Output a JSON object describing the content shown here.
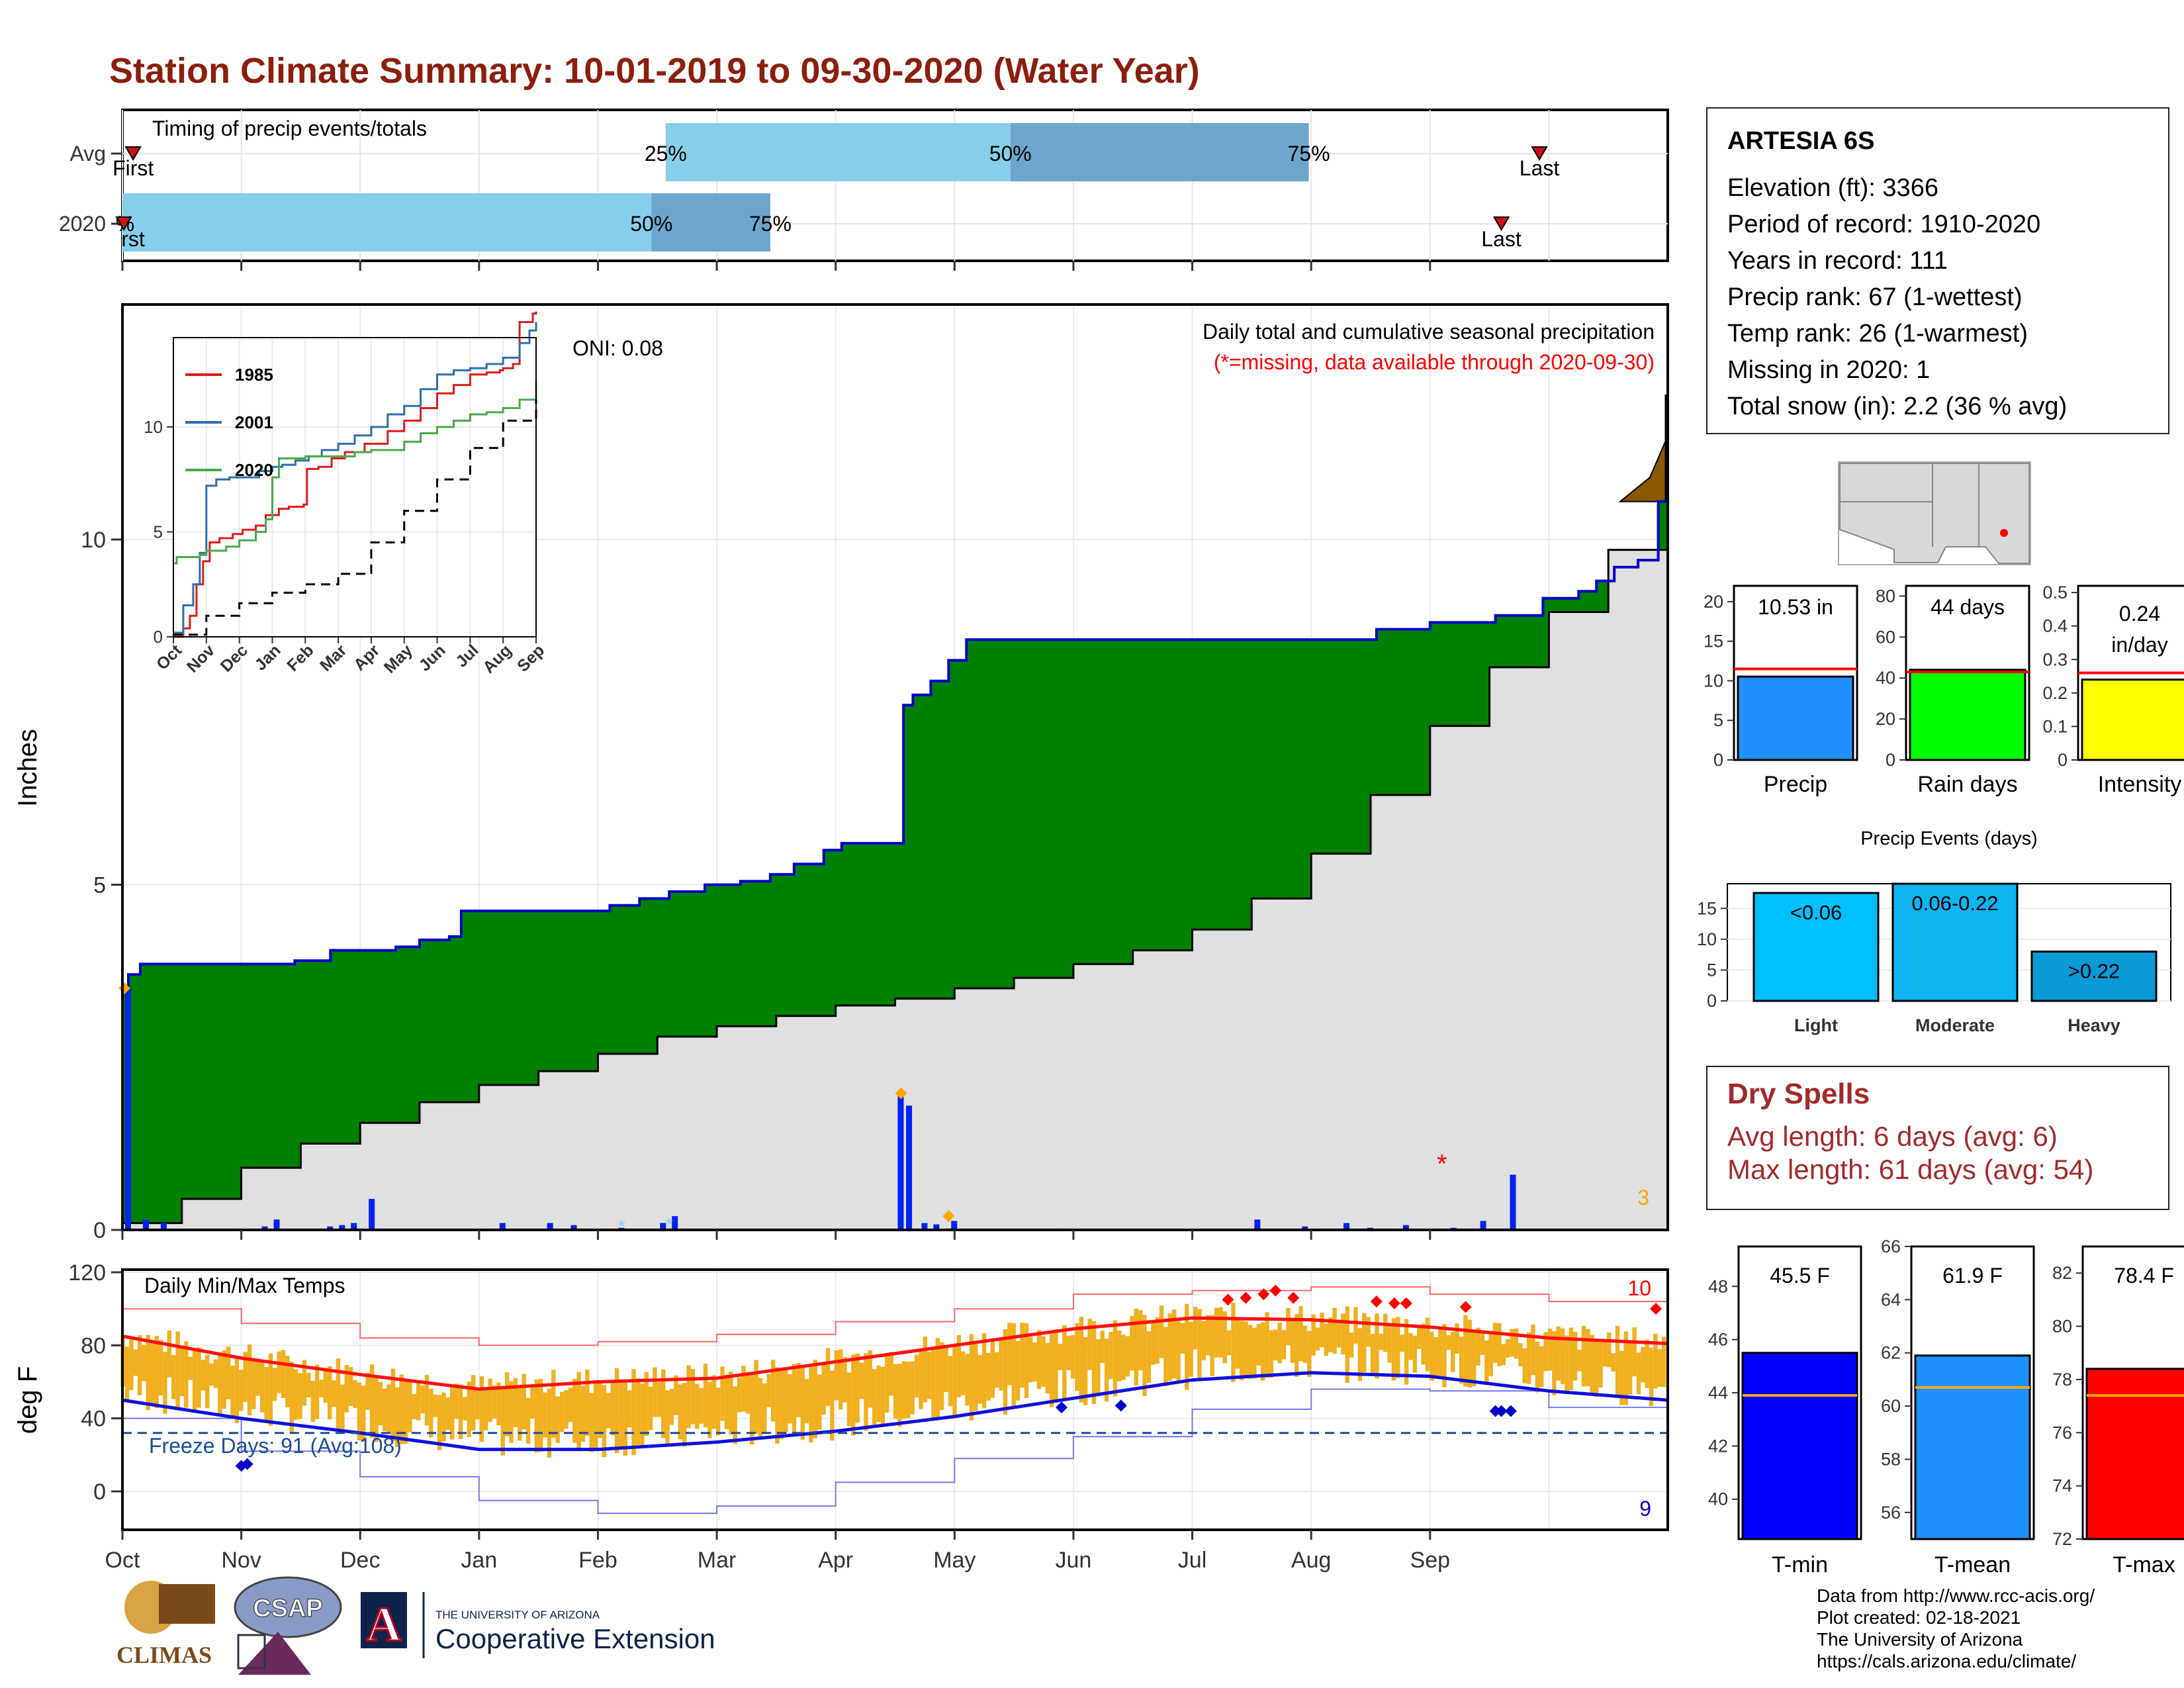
{
  "title": "Station Climate Summary: 10-01-2019 to 09-30-2020 (Water Year)",
  "station": {
    "name": "ARTESIA 6S",
    "lines": [
      "Elevation (ft): 3366",
      "Period of record: 1910-2020",
      "Years in record: 111",
      "Precip rank: 67 (1-wettest)",
      "Temp rank: 26 (1-warmest)",
      "Missing in 2020: 1",
      "Total snow (in): 2.2 (36 % avg)"
    ]
  },
  "months": [
    "Oct",
    "Nov",
    "Dec",
    "Jan",
    "Feb",
    "Mar",
    "Apr",
    "May",
    "Jun",
    "Jul",
    "Aug",
    "Sep"
  ],
  "timing": {
    "title": "Timing of precip events/totals",
    "rows": [
      "Avg",
      "2020"
    ],
    "avg": {
      "first": 0.09,
      "p25": 4.57,
      "p50": 7.47,
      "p75": 9.98,
      "last": 11.92
    },
    "y2020": {
      "first": 0.0,
      "p25": 0.0,
      "p50": 4.45,
      "p75": 5.45,
      "last": 11.6
    },
    "labels": {
      "first": "First",
      "last": "Last",
      "p25": "25%",
      "p50": "50%",
      "p75": "75%",
      "p0": "%",
      "first_cut": "rst"
    }
  },
  "precip": {
    "ylabel": "Inches",
    "yticks": [
      0,
      5,
      10
    ],
    "oni": "ONI: 0.08",
    "note": "Daily total and cumulative seasonal precipitation",
    "missing_note": "(*=missing, data available through 2020-09-30)",
    "count_label": "3",
    "cum_2020": [
      [
        0,
        3.5
      ],
      [
        0.05,
        3.7
      ],
      [
        0.15,
        3.85
      ],
      [
        1.0,
        3.85
      ],
      [
        1.45,
        3.9
      ],
      [
        1.75,
        4.05
      ],
      [
        2.3,
        4.1
      ],
      [
        2.5,
        4.2
      ],
      [
        2.75,
        4.25
      ],
      [
        2.85,
        4.62
      ],
      [
        4.1,
        4.7
      ],
      [
        4.35,
        4.8
      ],
      [
        4.6,
        4.9
      ],
      [
        4.9,
        5.0
      ],
      [
        5.2,
        5.05
      ],
      [
        5.45,
        5.15
      ],
      [
        5.65,
        5.3
      ],
      [
        5.9,
        5.5
      ],
      [
        6.05,
        5.6
      ],
      [
        6.55,
        5.6
      ],
      [
        6.57,
        7.6
      ],
      [
        6.65,
        7.75
      ],
      [
        6.8,
        7.95
      ],
      [
        6.95,
        8.25
      ],
      [
        7.1,
        8.55
      ],
      [
        7.9,
        8.55
      ],
      [
        10.45,
        8.55
      ],
      [
        10.55,
        8.7
      ],
      [
        11.0,
        8.8
      ],
      [
        11.55,
        8.9
      ],
      [
        11.95,
        9.15
      ],
      [
        12.25,
        9.25
      ],
      [
        12.4,
        9.4
      ],
      [
        12.55,
        9.6
      ],
      [
        12.75,
        9.7
      ],
      [
        12.92,
        10.55
      ],
      [
        13.0,
        10.55
      ]
    ],
    "avg_cum": [
      [
        0,
        0.1
      ],
      [
        0.5,
        0.45
      ],
      [
        1.0,
        0.9
      ],
      [
        1.5,
        1.25
      ],
      [
        2.0,
        1.55
      ],
      [
        2.5,
        1.85
      ],
      [
        3.0,
        2.1
      ],
      [
        3.5,
        2.3
      ],
      [
        4.0,
        2.55
      ],
      [
        4.5,
        2.8
      ],
      [
        5.0,
        2.95
      ],
      [
        5.5,
        3.1
      ],
      [
        6.0,
        3.25
      ],
      [
        6.5,
        3.35
      ],
      [
        7.0,
        3.5
      ],
      [
        7.5,
        3.65
      ],
      [
        8.0,
        3.85
      ],
      [
        8.5,
        4.05
      ],
      [
        9.0,
        4.35
      ],
      [
        9.5,
        4.8
      ],
      [
        10.0,
        5.45
      ],
      [
        10.5,
        6.3
      ],
      [
        11.0,
        7.3
      ],
      [
        11.5,
        8.15
      ],
      [
        12.0,
        8.95
      ],
      [
        12.5,
        9.85
      ],
      [
        13.0,
        10.55
      ]
    ],
    "above_avg_cum": [
      [
        12.6,
        10.55
      ],
      [
        12.85,
        10.9
      ],
      [
        13.0,
        11.5
      ]
    ],
    "max_value": 12.1,
    "daily": [
      [
        0.05,
        3.5
      ],
      [
        0.2,
        0.15
      ],
      [
        0.35,
        0.1
      ],
      [
        1.2,
        0.05
      ],
      [
        1.3,
        0.15
      ],
      [
        1.75,
        0.05
      ],
      [
        1.85,
        0.07
      ],
      [
        1.95,
        0.1
      ],
      [
        2.1,
        0.45
      ],
      [
        3.2,
        0.1
      ],
      [
        3.6,
        0.1
      ],
      [
        3.8,
        0.07
      ],
      [
        4.2,
        0.03
      ],
      [
        4.55,
        0.1
      ],
      [
        4.65,
        0.2
      ],
      [
        6.55,
        1.95
      ],
      [
        6.62,
        1.8
      ],
      [
        6.75,
        0.1
      ],
      [
        6.85,
        0.08
      ],
      [
        7.0,
        0.13
      ],
      [
        7.9,
        0.02
      ],
      [
        9.55,
        0.15
      ],
      [
        9.95,
        0.05
      ],
      [
        10.3,
        0.1
      ],
      [
        10.5,
        0.03
      ],
      [
        10.8,
        0.07
      ],
      [
        11.2,
        0.03
      ],
      [
        11.45,
        0.13
      ],
      [
        11.7,
        0.8
      ]
    ],
    "missing_day": [
      11.1,
      1.0
    ]
  },
  "inset": {
    "yticks": [
      0,
      5,
      10
    ],
    "series": [
      {
        "name": "1985",
        "color": "#dd1c1c",
        "points": [
          [
            0,
            0
          ],
          [
            0.3,
            0.4
          ],
          [
            0.5,
            1.0
          ],
          [
            0.7,
            2.5
          ],
          [
            0.9,
            3.6
          ],
          [
            1.1,
            4.5
          ],
          [
            1.4,
            4.7
          ],
          [
            1.8,
            4.9
          ],
          [
            2.1,
            5.1
          ],
          [
            2.5,
            5.3
          ],
          [
            2.8,
            5.8
          ],
          [
            3.2,
            6.1
          ],
          [
            3.5,
            6.2
          ],
          [
            3.95,
            6.3
          ],
          [
            4.05,
            8.0
          ],
          [
            4.4,
            8.1
          ],
          [
            4.8,
            8.5
          ],
          [
            5.2,
            8.8
          ],
          [
            5.8,
            9.2
          ],
          [
            6.5,
            9.8
          ],
          [
            7.0,
            10.3
          ],
          [
            7.5,
            10.9
          ],
          [
            8.0,
            11.6
          ],
          [
            8.5,
            12.0
          ],
          [
            9.0,
            12.5
          ],
          [
            9.5,
            12.6
          ],
          [
            9.9,
            12.7
          ],
          [
            10.0,
            12.8
          ],
          [
            10.3,
            13.0
          ],
          [
            10.5,
            15.0
          ],
          [
            10.9,
            15.4
          ],
          [
            11.0,
            15.5
          ]
        ]
      },
      {
        "name": "2001",
        "color": "#2e6fad",
        "points": [
          [
            0,
            0.2
          ],
          [
            0.3,
            1.5
          ],
          [
            0.6,
            2.5
          ],
          [
            0.8,
            4.0
          ],
          [
            1.0,
            7.2
          ],
          [
            1.3,
            7.5
          ],
          [
            1.7,
            7.6
          ],
          [
            2.2,
            7.6
          ],
          [
            2.6,
            7.9
          ],
          [
            3.0,
            8.1
          ],
          [
            3.3,
            8.2
          ],
          [
            3.7,
            8.4
          ],
          [
            4.1,
            8.6
          ],
          [
            4.5,
            8.9
          ],
          [
            5.0,
            9.2
          ],
          [
            5.5,
            9.6
          ],
          [
            6.0,
            10.0
          ],
          [
            6.5,
            10.6
          ],
          [
            7.0,
            11.0
          ],
          [
            7.5,
            11.8
          ],
          [
            8.0,
            12.5
          ],
          [
            8.5,
            12.7
          ],
          [
            9.0,
            12.8
          ],
          [
            9.5,
            13.0
          ],
          [
            10.0,
            13.3
          ],
          [
            10.5,
            14.0
          ],
          [
            10.8,
            14.6
          ],
          [
            11.0,
            15.0
          ]
        ]
      },
      {
        "name": "2020",
        "color": "#4aaa4a",
        "points": [
          [
            0,
            3.5
          ],
          [
            0.1,
            3.8
          ],
          [
            0.8,
            3.9
          ],
          [
            1.0,
            4.1
          ],
          [
            1.6,
            4.3
          ],
          [
            2.0,
            4.6
          ],
          [
            2.5,
            5.0
          ],
          [
            2.8,
            5.6
          ],
          [
            3.0,
            7.6
          ],
          [
            3.2,
            8.5
          ],
          [
            4.0,
            8.6
          ],
          [
            5.0,
            8.6
          ],
          [
            5.5,
            8.8
          ],
          [
            6.0,
            8.9
          ],
          [
            7.0,
            9.3
          ],
          [
            7.5,
            9.7
          ],
          [
            8.0,
            10.0
          ],
          [
            8.5,
            10.3
          ],
          [
            9.0,
            10.6
          ],
          [
            9.5,
            10.7
          ],
          [
            10.0,
            10.9
          ],
          [
            10.5,
            11.3
          ],
          [
            11.0,
            12.2
          ]
        ]
      },
      {
        "name": "avg",
        "color": "#000000",
        "points": [
          [
            0,
            0.1
          ],
          [
            1.0,
            1.0
          ],
          [
            2.0,
            1.6
          ],
          [
            3.0,
            2.1
          ],
          [
            4.0,
            2.5
          ],
          [
            5.0,
            3.0
          ],
          [
            6.0,
            4.5
          ],
          [
            7.0,
            6.0
          ],
          [
            8.0,
            7.5
          ],
          [
            9.0,
            9.0
          ],
          [
            10.0,
            10.3
          ],
          [
            11.0,
            11.3
          ]
        ]
      }
    ]
  },
  "summary_bars": [
    {
      "label": "Precip",
      "value_text": "10.53 in",
      "value": 10.53,
      "avg": 11.5,
      "ymax": 22,
      "yticks": [
        0,
        5,
        10,
        15,
        20
      ],
      "color": "#1e90ff"
    },
    {
      "label": "Rain days",
      "value_text": "44 days",
      "value": 44,
      "avg": 43,
      "ymax": 85,
      "yticks": [
        0,
        20,
        40,
        60,
        80
      ],
      "color": "#00ff00"
    },
    {
      "label": "Intensity",
      "value_text": "0.24 in/day",
      "value": 0.24,
      "avg": 0.26,
      "ymax": 0.52,
      "yticks": [
        0.0,
        0.1,
        0.2,
        0.3,
        0.4,
        0.5
      ],
      "color": "#ffff00"
    }
  ],
  "events": {
    "title": "Precip Events (days)",
    "yticks": [
      0,
      5,
      10,
      15
    ],
    "bars": [
      {
        "cat": "Light",
        "label": "<0.06",
        "value": 17.5,
        "color": "#00bfff"
      },
      {
        "cat": "Moderate",
        "label": "0.06-0.22",
        "value": 19,
        "color": "#0fb3f0"
      },
      {
        "cat": "Heavy",
        "label": ">0.22",
        "value": 8,
        "color": "#0a9ad6"
      }
    ]
  },
  "dry_spells": {
    "title": "Dry Spells",
    "avg": "Avg length: 6 days (avg: 6)",
    "max": "Max length: 61 days (avg: 54)"
  },
  "temps": {
    "title": "Daily Min/Max Temps",
    "ylabel": "deg F",
    "yticks": [
      0,
      40,
      80,
      120
    ],
    "freeze": "Freeze Days: 91 (Avg:108)",
    "count_hot": "10",
    "count_cold": "9",
    "freeze_line": 32,
    "avg_max": [
      [
        0,
        85
      ],
      [
        1,
        73
      ],
      [
        2,
        64
      ],
      [
        3,
        56
      ],
      [
        4,
        60
      ],
      [
        5,
        62
      ],
      [
        6,
        71
      ],
      [
        7,
        80
      ],
      [
        8,
        89
      ],
      [
        9,
        95
      ],
      [
        10,
        94
      ],
      [
        11,
        90
      ],
      [
        12,
        84
      ],
      [
        13,
        81
      ]
    ],
    "avg_min": [
      [
        0,
        50
      ],
      [
        1,
        40
      ],
      [
        2,
        32
      ],
      [
        3,
        23
      ],
      [
        4,
        23
      ],
      [
        5,
        27
      ],
      [
        6,
        33
      ],
      [
        7,
        41
      ],
      [
        8,
        51
      ],
      [
        9,
        61
      ],
      [
        10,
        65
      ],
      [
        11,
        63
      ],
      [
        12,
        55
      ],
      [
        13,
        50
      ]
    ],
    "rec_max": [
      [
        0,
        100
      ],
      [
        1,
        92
      ],
      [
        2,
        84
      ],
      [
        3,
        80
      ],
      [
        4,
        82
      ],
      [
        5,
        86
      ],
      [
        6,
        93
      ],
      [
        7,
        100
      ],
      [
        8,
        108
      ],
      [
        9,
        110
      ],
      [
        10,
        112
      ],
      [
        11,
        108
      ],
      [
        12,
        104
      ],
      [
        13,
        100
      ]
    ],
    "rec_min": [
      [
        0,
        40
      ],
      [
        1,
        22
      ],
      [
        2,
        8
      ],
      [
        3,
        -5
      ],
      [
        4,
        -12
      ],
      [
        5,
        -8
      ],
      [
        6,
        5
      ],
      [
        7,
        18
      ],
      [
        8,
        30
      ],
      [
        9,
        45
      ],
      [
        10,
        56
      ],
      [
        11,
        55
      ],
      [
        12,
        46
      ],
      [
        13,
        38
      ]
    ]
  },
  "temp_bars": [
    {
      "label": "T-min",
      "value_text": "45.5 F",
      "value": 45.5,
      "avg": 43.9,
      "ymin": 38.5,
      "ymax": 49.5,
      "yticks": [
        40,
        42,
        44,
        46,
        48
      ],
      "color": "#0000ff"
    },
    {
      "label": "T-mean",
      "value_text": "61.9 F",
      "value": 61.9,
      "avg": 60.7,
      "ymin": 55,
      "ymax": 66,
      "yticks": [
        56,
        58,
        60,
        62,
        64,
        66
      ],
      "color": "#1e90ff"
    },
    {
      "label": "T-max",
      "value_text": "78.4 F",
      "value": 78.4,
      "avg": 77.4,
      "ymin": 72,
      "ymax": 83,
      "yticks": [
        72,
        74,
        76,
        78,
        80,
        82
      ],
      "color": "#ff0000"
    }
  ],
  "credits": [
    "Data from http://www.rcc-acis.org/",
    "Plot created: 02-18-2021",
    "The University of Arizona",
    "https://cals.arizona.edu/climate/"
  ],
  "logos": {
    "climas": "CLIMAS",
    "csap": "CSAP",
    "ua_small": "THE UNIVERSITY OF ARIZONA",
    "ua_big": "Cooperative Extension",
    "ua_letter": "A"
  }
}
